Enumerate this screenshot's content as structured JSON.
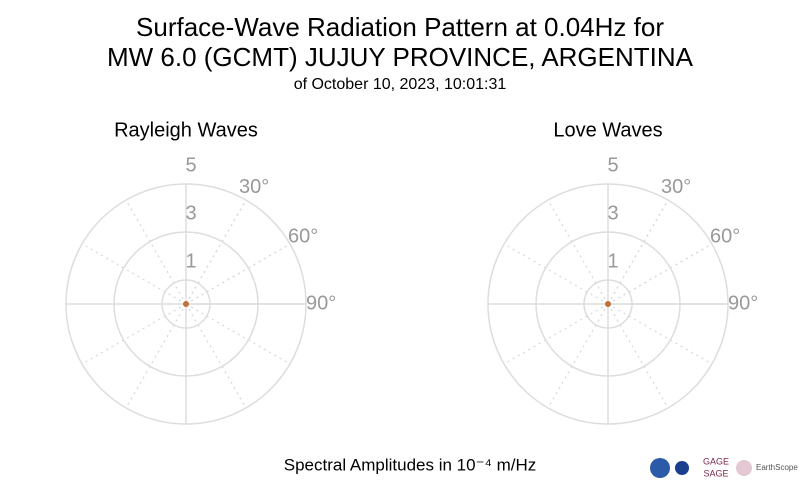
{
  "header": {
    "title": [
      "Surface-Wave Radiation Pattern at 0.04Hz for",
      "MW 6.0 (GCMT) JUJUY PROVINCE, ARGENTINA"
    ],
    "subtitle": "of October 10, 2023, 10:01:31"
  },
  "footer": {
    "x_label": "Spectral Amplitudes in 10⁻⁴ m/Hz",
    "logos": [
      "GAGE",
      "SAGE",
      "EarthScope"
    ]
  },
  "chart_data": [
    {
      "type": "polar",
      "title": "Rayleigh Waves",
      "rlim": [
        0,
        5
      ],
      "rticks": [
        1,
        3,
        5
      ],
      "thetaticks": [
        {
          "value": 30,
          "label": "30°"
        },
        {
          "value": 60,
          "label": "60°"
        },
        {
          "value": 90,
          "label": "90°"
        }
      ],
      "grid": true,
      "series": [
        {
          "color": "#c0703a",
          "theta": [
            0
          ],
          "r": [
            0
          ]
        }
      ]
    },
    {
      "type": "polar",
      "title": "Love Waves",
      "rlim": [
        0,
        5
      ],
      "rticks": [
        1,
        3,
        5
      ],
      "thetaticks": [
        {
          "value": 30,
          "label": "30°"
        },
        {
          "value": 60,
          "label": "60°"
        },
        {
          "value": 90,
          "label": "90°"
        }
      ],
      "grid": true,
      "series": [
        {
          "color": "#c0703a",
          "theta": [
            0
          ],
          "r": [
            0
          ]
        }
      ]
    }
  ]
}
